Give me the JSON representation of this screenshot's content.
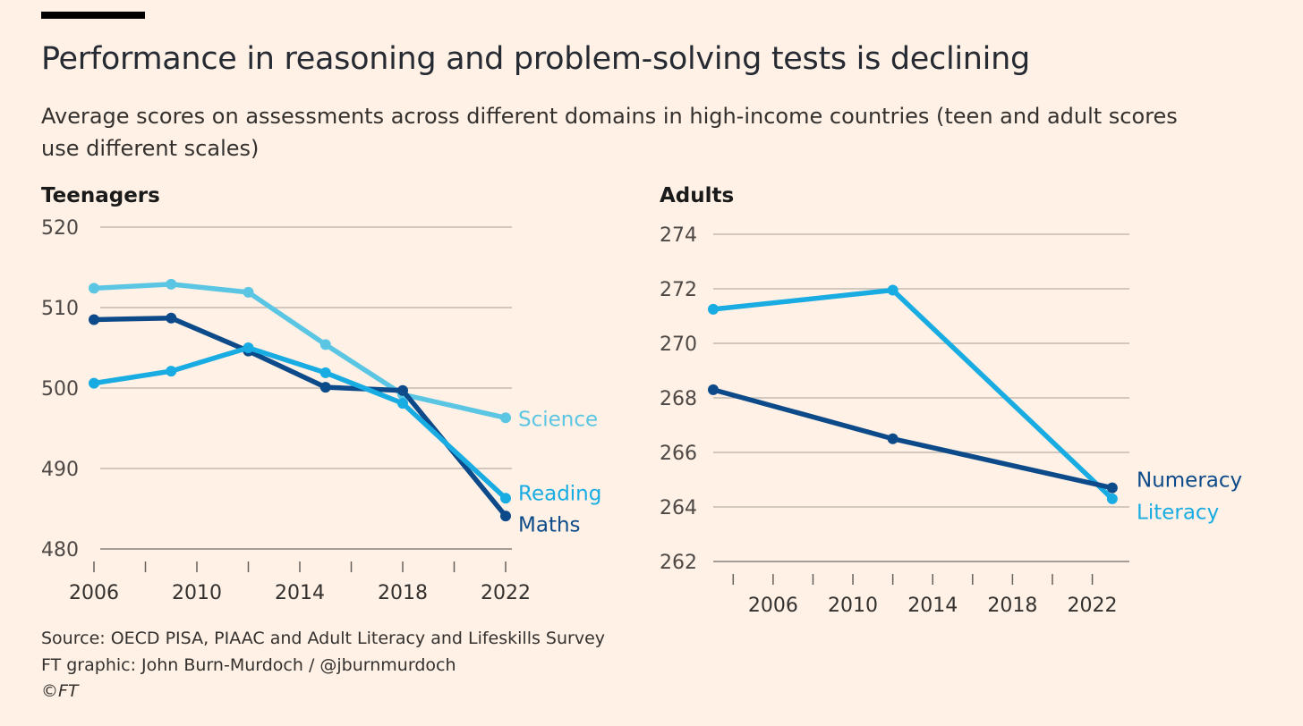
{
  "title": "Performance in reasoning and problem-solving tests is declining",
  "subtitle": "Average scores on assessments across different domains in high-income countries (teen and adult scores use different scales)",
  "footer": {
    "source": "Source: OECD PISA, PIAAC and Adult Literacy and Lifeskills Survey",
    "credit": "FT graphic: John Burn-Murdoch / @jburnmurdoch",
    "copyright": "©FT"
  },
  "chart_data": [
    {
      "type": "line",
      "title": "Teenagers",
      "xlabel": "",
      "ylabel": "",
      "xlim": [
        2006,
        2022
      ],
      "ylim": [
        480,
        520
      ],
      "yticks": [
        480,
        490,
        500,
        510,
        520
      ],
      "xticks": [
        2006,
        2010,
        2014,
        2018,
        2022
      ],
      "minor_xticks": [
        2006,
        2008,
        2010,
        2012,
        2014,
        2016,
        2018,
        2020,
        2022
      ],
      "grid": true,
      "legend": "direct-labels-right",
      "x": [
        2006,
        2009,
        2012,
        2015,
        2018,
        2022
      ],
      "series": [
        {
          "name": "Science",
          "color": "#5BC6E3",
          "values": [
            512.4,
            512.9,
            511.9,
            505.4,
            499.2,
            496.3
          ]
        },
        {
          "name": "Maths",
          "color": "#0D4A8A",
          "values": [
            508.5,
            508.7,
            504.6,
            500.1,
            499.7,
            484.1
          ]
        },
        {
          "name": "Reading",
          "color": "#18ACE2",
          "values": [
            500.6,
            502.1,
            505.0,
            501.9,
            498.1,
            486.3
          ]
        }
      ]
    },
    {
      "type": "line",
      "title": "Adults",
      "xlabel": "",
      "ylabel": "",
      "xlim": [
        2003,
        2023.5
      ],
      "ylim": [
        262,
        274
      ],
      "yticks": [
        262,
        264,
        266,
        268,
        270,
        272,
        274
      ],
      "xticks": [
        2006,
        2010,
        2014,
        2018,
        2022
      ],
      "minor_xticks": [
        2004,
        2006,
        2008,
        2010,
        2012,
        2014,
        2016,
        2018,
        2020,
        2022
      ],
      "grid": true,
      "legend": "direct-labels-right",
      "x": [
        2003,
        2012,
        2023
      ],
      "series": [
        {
          "name": "Literacy",
          "color": "#18ACE2",
          "values": [
            271.25,
            271.95,
            264.3
          ]
        },
        {
          "name": "Numeracy",
          "color": "#0D4A8A",
          "values": [
            268.3,
            266.5,
            264.7
          ]
        }
      ]
    }
  ]
}
